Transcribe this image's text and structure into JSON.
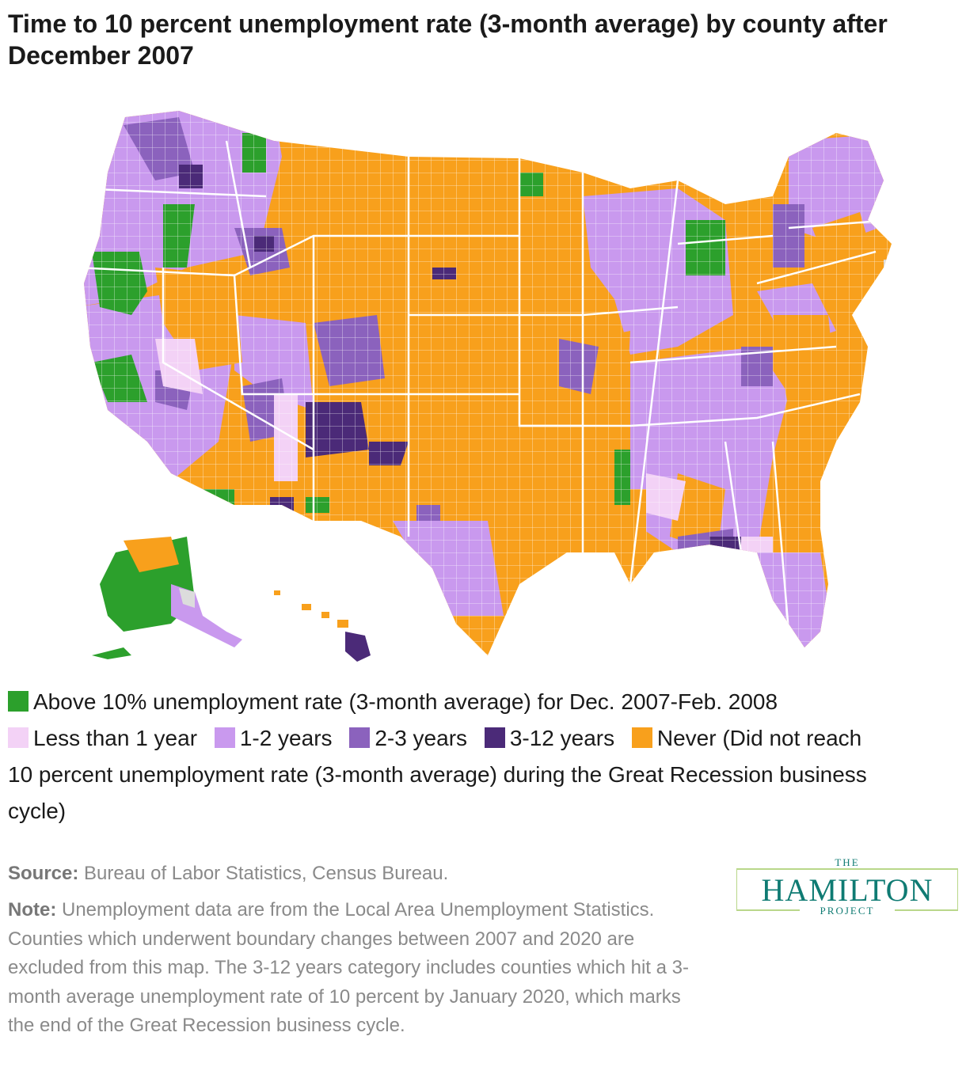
{
  "title": "Time to 10 percent unemployment rate (3-month average) by county after December 2007",
  "legend": {
    "green": {
      "label": "Above 10% unemployment rate (3-month average) for Dec. 2007-Feb. 2008",
      "color": "#2ca02c"
    },
    "lt1": {
      "label": "Less than 1 year",
      "color": "#f3d2f6"
    },
    "y12": {
      "label": "1-2 years",
      "color": "#c999ee"
    },
    "y23": {
      "label": "2-3 years",
      "color": "#8b62bd"
    },
    "y312": {
      "label": "3-12 years",
      "color": "#4b2a78"
    },
    "never": {
      "label": "Never (Did not reach",
      "continuation": "10 percent unemployment rate (3-month average) during the Great Recession business cycle)",
      "color": "#f8a01c"
    },
    "excluded_color": "#dcdcdc"
  },
  "source": {
    "label": "Source:",
    "text": "Bureau of Labor Statistics, Census Bureau."
  },
  "note": {
    "label": "Note:",
    "text": "Unemployment data are from the Local Area Unemployment Statistics. Counties which underwent boundary changes between 2007 and 2020 are excluded from this map. The 3-12 years category includes counties which hit a 3-month average unemployment rate of 10 percent by January 2020, which marks the end of the Great Recession business cycle."
  },
  "logo": {
    "line1": "THE",
    "line2": "HAMILTON",
    "line3": "PROJECT",
    "color": "#0f7b73"
  }
}
